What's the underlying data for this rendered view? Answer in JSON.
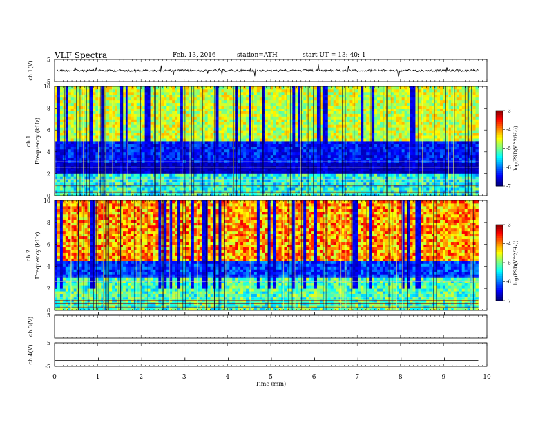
{
  "header": {
    "title": "VLF  Spectra",
    "date": "Feb. 13, 2016",
    "station": "station=ATH",
    "start": "start  UT  =    13: 40: 1"
  },
  "chart_data": {
    "type": "heatmap",
    "time_axis": {
      "label": "Time  (min)",
      "range": [
        0,
        10
      ],
      "ticks": [
        "0",
        "1",
        "2",
        "3",
        "4",
        "5",
        "6",
        "7",
        "8",
        "9",
        "10"
      ],
      "data_end_min": 9.8
    },
    "panels": [
      {
        "kind": "waveform",
        "ylabel": "ch.1(V)",
        "ylim": [
          -5,
          5
        ],
        "ticks": [
          "5",
          "-5"
        ],
        "baseline": 0,
        "noise": "dense spiky"
      },
      {
        "kind": "spectrogram",
        "channel_label": "ch.1",
        "ylabel": "Frequency  (kHz)",
        "ylim": [
          0,
          10
        ],
        "ticks": [
          "0",
          "2",
          "4",
          "6",
          "8",
          "10"
        ],
        "colorbar": {
          "label": "log(PSD(V^2/Hz))",
          "range": [
            -7,
            -3
          ],
          "ticks": [
            "-3",
            "-4",
            "-5",
            "-6",
            "-7"
          ]
        }
      },
      {
        "kind": "spectrogram",
        "channel_label": "ch.2",
        "ylabel": "Frequency  (kHz)",
        "ylim": [
          0,
          10
        ],
        "ticks": [
          "0",
          "2",
          "4",
          "6",
          "8",
          "10"
        ],
        "colorbar": {
          "label": "log(PSD(V^2/Hz))",
          "range": [
            -7,
            -3
          ],
          "ticks": [
            "-3",
            "-4",
            "-5",
            "-6",
            "-7"
          ]
        }
      },
      {
        "kind": "waveform",
        "ylabel": "ch.3(V)",
        "ylim": [
          -5,
          5
        ],
        "ticks": [
          "5"
        ],
        "baseline": 5,
        "noise": "flat"
      },
      {
        "kind": "waveform",
        "ylabel": "ch.4(V)",
        "ylim": [
          -5,
          5
        ],
        "ticks": [
          "5",
          "-5"
        ],
        "baseline": -2.5,
        "noise": "flat"
      }
    ]
  }
}
